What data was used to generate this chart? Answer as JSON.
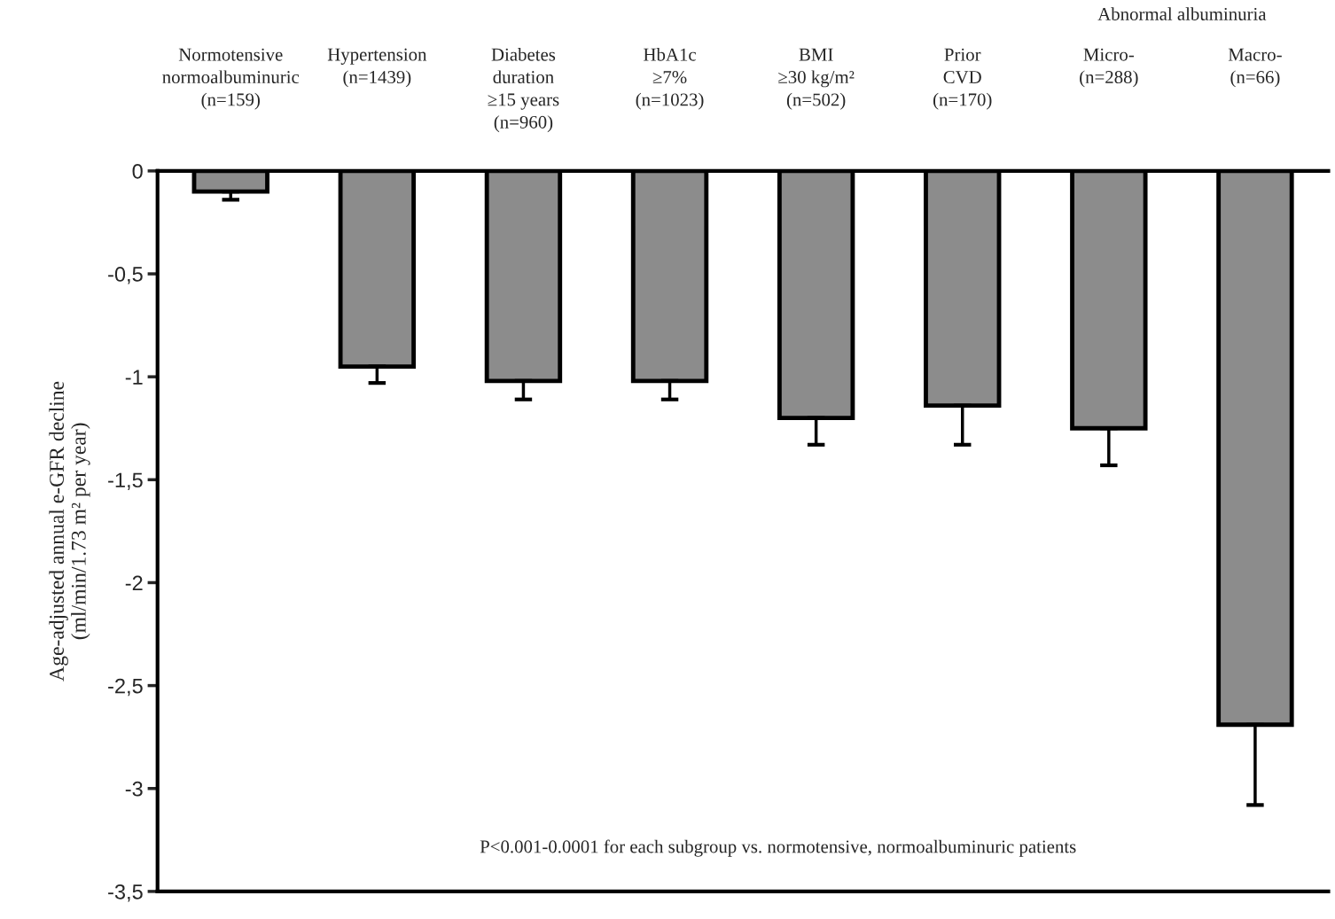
{
  "chart_data": {
    "type": "bar",
    "categories": [
      "Normotensive\nnormoalbuminuric\n(n=159)",
      "Hypertension\n(n=1439)",
      "Diabetes\nduration\n≥15 years\n(n=960)",
      "HbA1c\n≥7%\n(n=1023)",
      "BMI\n≥30 kg/m²\n(n=502)",
      "Prior\nCVD\n(n=170)",
      "Micro-\n(n=288)",
      "Macro-\n(n=66)"
    ],
    "values": [
      -0.1,
      -0.95,
      -1.02,
      -1.02,
      -1.2,
      -1.14,
      -1.25,
      -2.69
    ],
    "errors": [
      [
        -0.14,
        -0.1
      ],
      [
        -1.03,
        -0.95
      ],
      [
        -1.11,
        -1.02
      ],
      [
        -1.11,
        -1.02
      ],
      [
        -1.33,
        -1.2
      ],
      [
        -1.33,
        -1.14
      ],
      [
        -1.43,
        -1.25
      ],
      [
        -3.08,
        -2.69
      ]
    ],
    "color": "#8c8c8c",
    "ylabel": "Age-adjusted annual e-GFR decline\n(ml/min/1.73 m² per year)",
    "ylim": [
      -3.5,
      0
    ],
    "yticks": [
      0,
      {
        "value": -0.5,
        "label": "-0,5"
      },
      -1,
      {
        "value": -1.5,
        "label": "-1,5"
      },
      -2,
      {
        "value": -2.5,
        "label": "-2,5"
      },
      -3,
      {
        "value": -3.5,
        "label": "-3,5"
      }
    ],
    "annotations": [
      "Abnormal albuminuria",
      "P<0.001-0.0001 for each subgroup vs. normotensive, normoalbuminuric patients"
    ],
    "grid": false,
    "legend": false
  }
}
